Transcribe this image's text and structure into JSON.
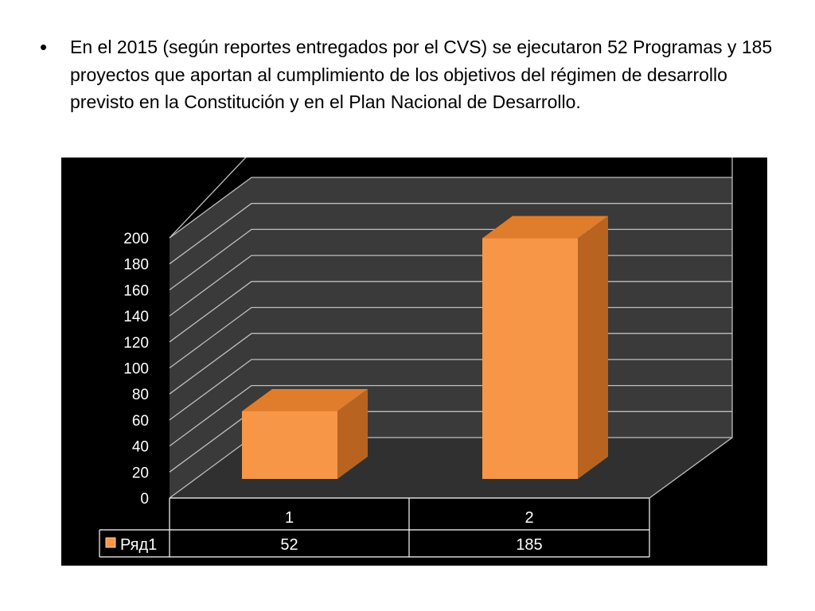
{
  "slide": {
    "bullet_symbol": "•",
    "bullet_text": "En el 2015 (según reportes entregados por el CVS) se ejecutaron 52 Programas y 185 proyectos que aportan al cumplimiento de los objetivos del régimen de desarrollo previsto en la Constitución y en el Plan Nacional de Desarrollo."
  },
  "chart_data": {
    "type": "bar",
    "style": "3d-column",
    "categories": [
      "1",
      "2"
    ],
    "series": [
      {
        "name": "Ряд1",
        "values": [
          52,
          185
        ],
        "color": "#f79646"
      }
    ],
    "ylim": [
      0,
      200
    ],
    "yticks": [
      0,
      20,
      40,
      60,
      80,
      100,
      120,
      140,
      160,
      180,
      200
    ],
    "grid": true,
    "data_table": true,
    "colors": {
      "background": "#000000",
      "wall": "#3a3a3a",
      "floor": "#303030",
      "grid": "#bfbfbf",
      "bar_front": "#f79646",
      "bar_top": "#e07d2c",
      "bar_side": "#b86420"
    }
  }
}
